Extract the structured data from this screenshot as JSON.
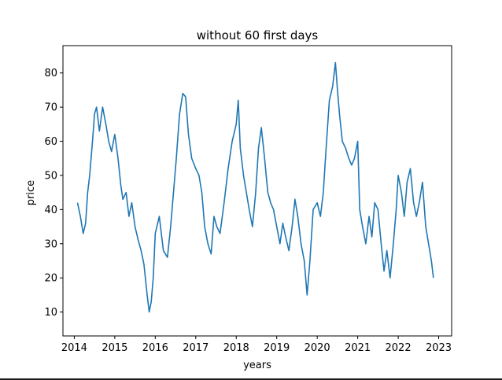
{
  "chart_data": {
    "type": "line",
    "title": "without 60 first days",
    "xlabel": "years",
    "ylabel": "price",
    "xlim": [
      2013.72,
      2023.32
    ],
    "ylim": [
      3,
      88
    ],
    "xticks": [
      2014,
      2015,
      2016,
      2017,
      2018,
      2019,
      2020,
      2021,
      2022,
      2023
    ],
    "yticks": [
      10,
      20,
      30,
      40,
      50,
      60,
      70,
      80
    ],
    "grid": false,
    "line_color": "#1f77b4",
    "series": [
      {
        "x": [
          2014.08,
          2014.15,
          2014.22,
          2014.28,
          2014.33,
          2014.38,
          2014.45,
          2014.5,
          2014.55,
          2014.62,
          2014.7,
          2014.78,
          2014.85,
          2014.92,
          2015.0,
          2015.08,
          2015.15,
          2015.2,
          2015.28,
          2015.35,
          2015.42,
          2015.5,
          2015.58,
          2015.65,
          2015.72,
          2015.8,
          2015.85,
          2015.9,
          2015.95,
          2016.0,
          2016.1,
          2016.2,
          2016.3,
          2016.38,
          2016.45,
          2016.52,
          2016.6,
          2016.68,
          2016.75,
          2016.82,
          2016.9,
          2017.0,
          2017.08,
          2017.15,
          2017.22,
          2017.3,
          2017.38,
          2017.45,
          2017.52,
          2017.6,
          2017.7,
          2017.8,
          2017.9,
          2018.0,
          2018.05,
          2018.1,
          2018.18,
          2018.25,
          2018.32,
          2018.4,
          2018.48,
          2018.55,
          2018.62,
          2018.7,
          2018.78,
          2018.85,
          2018.92,
          2019.0,
          2019.08,
          2019.15,
          2019.22,
          2019.3,
          2019.38,
          2019.45,
          2019.52,
          2019.6,
          2019.68,
          2019.75,
          2019.82,
          2019.9,
          2020.0,
          2020.08,
          2020.15,
          2020.22,
          2020.3,
          2020.38,
          2020.45,
          2020.5,
          2020.55,
          2020.62,
          2020.7,
          2020.78,
          2020.85,
          2020.92,
          2021.0,
          2021.05,
          2021.12,
          2021.2,
          2021.28,
          2021.35,
          2021.42,
          2021.5,
          2021.58,
          2021.65,
          2021.72,
          2021.8,
          2021.88,
          2021.95,
          2022.0,
          2022.08,
          2022.15,
          2022.22,
          2022.3,
          2022.38,
          2022.45,
          2022.52,
          2022.6,
          2022.68,
          2022.75,
          2022.82,
          2022.87
        ],
        "y": [
          42,
          38,
          33,
          36,
          45,
          50,
          60,
          68,
          70,
          63,
          70,
          65,
          60,
          57,
          62,
          55,
          47,
          43,
          45,
          38,
          42,
          35,
          31,
          28,
          24,
          15,
          10,
          13,
          20,
          33,
          38,
          28,
          26,
          35,
          45,
          55,
          68,
          74,
          73,
          62,
          55,
          52,
          50,
          45,
          35,
          30,
          27,
          38,
          35,
          33,
          42,
          52,
          60,
          65,
          72,
          58,
          50,
          45,
          40,
          35,
          45,
          58,
          64,
          55,
          45,
          42,
          40,
          35,
          30,
          36,
          32,
          28,
          35,
          43,
          38,
          30,
          25,
          15,
          25,
          40,
          42,
          38,
          45,
          58,
          72,
          76,
          83,
          75,
          68,
          60,
          58,
          55,
          53,
          55,
          60,
          40,
          35,
          30,
          38,
          32,
          42,
          40,
          30,
          22,
          28,
          20,
          30,
          40,
          50,
          45,
          38,
          48,
          52,
          42,
          38,
          42,
          48,
          35,
          30,
          25,
          20
        ]
      }
    ]
  }
}
